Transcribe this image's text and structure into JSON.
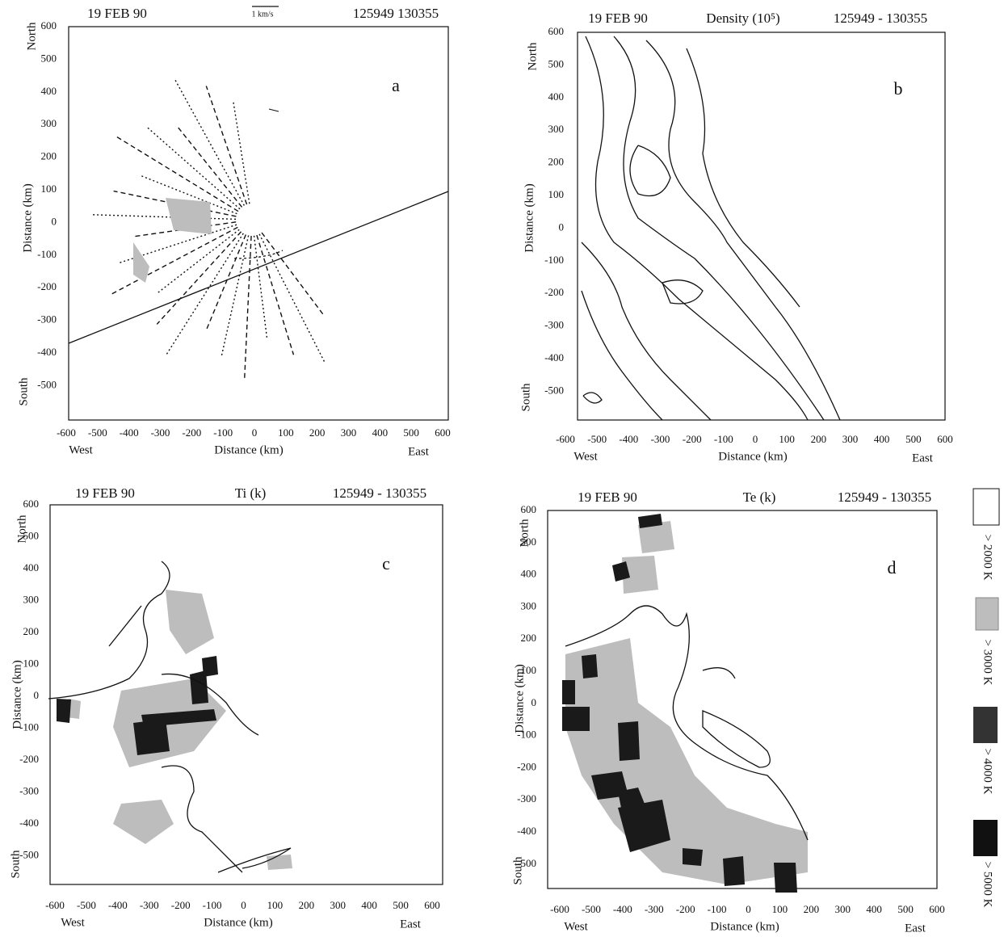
{
  "panels": [
    {
      "date": "19 FEB 90",
      "quantity": "1 km/s",
      "time": "125949  130355",
      "letter": "a",
      "north": "North",
      "south": "South",
      "y_label": "Distance (km)",
      "x_label": "Distance (km)",
      "west": "West",
      "east": "East",
      "xticks": [
        -600,
        -500,
        -400,
        -300,
        -200,
        -100,
        0,
        100,
        200,
        300,
        400,
        500,
        600
      ],
      "yticks": [
        600,
        500,
        400,
        300,
        200,
        100,
        0,
        -100,
        -200,
        -300,
        -400,
        -500
      ]
    },
    {
      "date": "19 FEB 90",
      "quantity": "Density (10⁵)",
      "time": "125949 - 130355",
      "letter": "b",
      "north": "North",
      "south": "South",
      "y_label": "Distance (km)",
      "x_label": "Distance (km)",
      "west": "West",
      "east": "East",
      "xticks": [
        -600,
        -500,
        -400,
        -300,
        -200,
        -100,
        0,
        100,
        200,
        300,
        400,
        500,
        600
      ],
      "yticks": [
        600,
        500,
        400,
        300,
        200,
        100,
        0,
        -100,
        -200,
        -300,
        -400,
        -500
      ]
    },
    {
      "date": "19 FEB 90",
      "quantity": "Ti (k)",
      "time": "125949 - 130355",
      "letter": "c",
      "north": "North",
      "south": "South",
      "y_label": "Distance (km)",
      "x_label": "Distance (km)",
      "west": "West",
      "east": "East",
      "xticks": [
        -600,
        -500,
        -400,
        -300,
        -200,
        -100,
        0,
        100,
        200,
        300,
        400,
        500,
        600
      ],
      "yticks": [
        600,
        500,
        400,
        300,
        200,
        100,
        0,
        -100,
        -200,
        -300,
        -400,
        -500
      ]
    },
    {
      "date": "19 FEB 90",
      "quantity": "Te (k)",
      "time": "125949 - 130355",
      "letter": "d",
      "north": "North",
      "south": "South",
      "y_label": "Distance (km)",
      "x_label": "Distance (km)",
      "west": "West",
      "east": "East",
      "xticks": [
        -600,
        -500,
        -400,
        -300,
        -200,
        -100,
        0,
        100,
        200,
        300,
        400,
        500,
        600
      ],
      "yticks": [
        600,
        500,
        400,
        300,
        200,
        100,
        0,
        -100,
        -200,
        -300,
        -400,
        -500
      ]
    }
  ],
  "legend": [
    "> 2000 K",
    "> 3000 K",
    "> 4000 K",
    "> 5000 K"
  ]
}
